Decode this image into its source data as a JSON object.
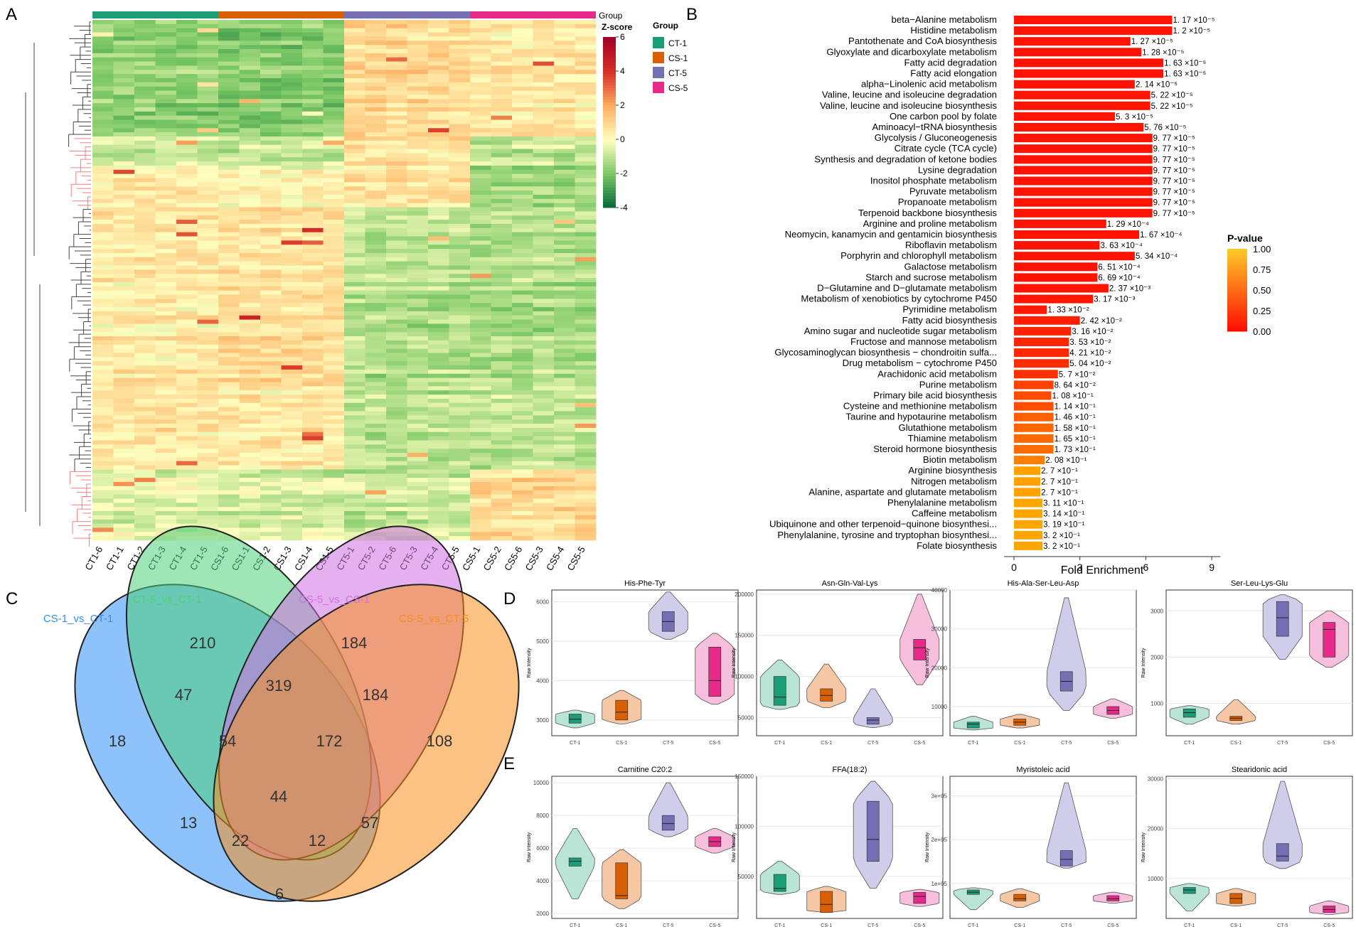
{
  "panel_labels": {
    "a": "A",
    "b": "B",
    "c": "C",
    "d": "D",
    "e": "E"
  },
  "heatmap": {
    "columns": [
      "CT1-6",
      "CT1-1",
      "CT1-2",
      "CT1-3",
      "CT1-4",
      "CT1-5",
      "CS1-6",
      "CS1-1",
      "CS1-2",
      "CS1-3",
      "CS1-4",
      "CS1-5",
      "CT5-1",
      "CT5-2",
      "CT5-6",
      "CT5-3",
      "CT5-4",
      "CT5-5",
      "CS5-1",
      "CS5-2",
      "CS5-6",
      "CS5-3",
      "CS5-4",
      "CS5-5"
    ],
    "group_bar_label": "Group",
    "scale_title": "Z-score",
    "scale_ticks": [
      "6",
      "4",
      "2",
      "0",
      "-2",
      "-4"
    ],
    "legend_title": "Group",
    "groups": [
      {
        "name": "CT-1",
        "color": "#1b9e77"
      },
      {
        "name": "CS-1",
        "color": "#d95f02"
      },
      {
        "name": "CT-5",
        "color": "#7570b3"
      },
      {
        "name": "CS-5",
        "color": "#e7298a"
      }
    ]
  },
  "chart_data": [
    {
      "type": "bar",
      "orientation": "horizontal",
      "panel": "B",
      "xlabel": "Fold Enrichment",
      "xticks": [
        "0",
        "3",
        "6",
        "9"
      ],
      "xlim": [
        0,
        9
      ],
      "legend_title": "P-value",
      "legend_ticks": [
        "1.00",
        "0.75",
        "0.50",
        "0.25",
        "0.00"
      ],
      "categories": [
        "beta−Alanine metabolism",
        "Histidine metabolism",
        "Pantothenate and CoA biosynthesis",
        "Glyoxylate and dicarboxylate metabolism",
        "Fatty acid degradation",
        "Fatty acid elongation",
        "alpha−Linolenic acid metabolism",
        "Valine, leucine and isoleucine degradation",
        "Valine, leucine and isoleucine biosynthesis",
        "One carbon pool by folate",
        "Aminoacyl−tRNA biosynthesis",
        "Glycolysis / Gluconeogenesis",
        "Citrate cycle (TCA cycle)",
        "Synthesis and degradation of ketone bodies",
        "Lysine degradation",
        "Inositol phosphate metabolism",
        "Pyruvate metabolism",
        "Propanoate metabolism",
        "Terpenoid backbone biosynthesis",
        "Arginine and proline metabolism",
        "Neomycin, kanamycin and gentamicin biosynthesis",
        "Riboflavin metabolism",
        "Porphyrin and chlorophyll metabolism",
        "Galactose metabolism",
        "Starch and sucrose metabolism",
        "D−Glutamine and D−glutamate metabolism",
        "Metabolism of xenobiotics by cytochrome P450",
        "Pyrimidine metabolism",
        "Fatty acid biosynthesis",
        "Amino sugar and nucleotide sugar metabolism",
        "Fructose and mannose metabolism",
        "Glycosaminoglycan biosynthesis − chondroitin sulfa...",
        "Drug metabolism − cytochrome P450",
        "Arachidonic acid metabolism",
        "Purine metabolism",
        "Primary bile acid biosynthesis",
        "Cysteine and methionine metabolism",
        "Taurine and hypotaurine metabolism",
        "Glutathione metabolism",
        "Thiamine metabolism",
        "Steroid hormone biosynthesis",
        "Biotin metabolism",
        "Arginine biosynthesis",
        "Nitrogen metabolism",
        "Alanine, aspartate and glutamate metabolism",
        "Phenylalanine metabolism",
        "Caffeine metabolism",
        "Ubiquinone and other terpenoid−quinone biosynthesi...",
        "Phenylalanine, tyrosine and tryptophan biosynthesi...",
        "Folate biosynthesis"
      ],
      "values": [
        7.2,
        7.2,
        5.3,
        5.8,
        6.8,
        6.8,
        5.5,
        6.2,
        6.2,
        4.6,
        5.9,
        6.3,
        6.3,
        6.3,
        6.3,
        6.3,
        6.3,
        6.3,
        6.3,
        4.2,
        5.7,
        3.9,
        5.5,
        3.8,
        3.8,
        4.3,
        3.6,
        1.5,
        3.0,
        2.6,
        2.5,
        2.5,
        2.5,
        2.0,
        1.8,
        1.7,
        1.8,
        1.8,
        1.8,
        1.8,
        1.8,
        1.4,
        1.2,
        1.2,
        1.2,
        1.3,
        1.3,
        1.3,
        1.3,
        1.3
      ],
      "pvalue_labels": [
        "1. 17 ×10⁻⁵",
        "1. 2 ×10⁻⁵",
        "1. 27 ×10⁻⁵",
        "1. 28 ×10⁻⁵",
        "1. 63 ×10⁻⁵",
        "1. 63 ×10⁻⁵",
        "2. 14 ×10⁻⁵",
        "5. 22 ×10⁻⁵",
        "5. 22 ×10⁻⁵",
        "5. 3 ×10⁻⁵",
        "5. 76 ×10⁻⁵",
        "9. 77 ×10⁻⁵",
        "9. 77 ×10⁻⁵",
        "9. 77 ×10⁻⁵",
        "9. 77 ×10⁻⁵",
        "9. 77 ×10⁻⁵",
        "9. 77 ×10⁻⁵",
        "9. 77 ×10⁻⁵",
        "9. 77 ×10⁻⁵",
        "1. 29 ×10⁻⁴",
        "1. 67 ×10⁻⁴",
        "3. 63 ×10⁻⁴",
        "5. 34 ×10⁻⁴",
        "6. 51 ×10⁻⁴",
        "6. 69 ×10⁻⁴",
        "2. 37 ×10⁻³",
        "3. 17 ×10⁻³",
        "1. 33 ×10⁻²",
        "2. 42 ×10⁻²",
        "3. 16 ×10⁻²",
        "3. 53 ×10⁻²",
        "4. 21 ×10⁻²",
        "5. 04 ×10⁻²",
        "5. 7 ×10⁻²",
        "8. 64 ×10⁻²",
        "1. 08 ×10⁻¹",
        "1. 14 ×10⁻¹",
        "1. 46 ×10⁻¹",
        "1. 58 ×10⁻¹",
        "1. 65 ×10⁻¹",
        "1. 73 ×10⁻¹",
        "2. 08 ×10⁻¹",
        "2. 7 ×10⁻¹",
        "2. 7 ×10⁻¹",
        "2. 7 ×10⁻¹",
        "3. 11 ×10⁻¹",
        "3. 14 ×10⁻¹",
        "3. 19 ×10⁻¹",
        "3. 2 ×10⁻¹",
        "3. 2 ×10⁻¹"
      ],
      "pvalues": [
        1.17e-05,
        1.2e-05,
        1.27e-05,
        1.28e-05,
        1.63e-05,
        1.63e-05,
        2.14e-05,
        5.22e-05,
        5.22e-05,
        5.3e-05,
        5.76e-05,
        9.77e-05,
        9.77e-05,
        9.77e-05,
        9.77e-05,
        9.77e-05,
        9.77e-05,
        9.77e-05,
        9.77e-05,
        0.000129,
        0.000167,
        0.000363,
        0.000534,
        0.000651,
        0.000669,
        0.00237,
        0.00317,
        0.0133,
        0.0242,
        0.0316,
        0.0353,
        0.0421,
        0.0504,
        0.057,
        0.0864,
        0.108,
        0.114,
        0.146,
        0.158,
        0.165,
        0.173,
        0.208,
        0.27,
        0.27,
        0.27,
        0.311,
        0.314,
        0.319,
        0.32,
        0.32
      ]
    },
    {
      "type": "venn",
      "panel": "C",
      "sets": [
        {
          "name": "CS-1_vs_CT-1",
          "color": "#2f8ff5"
        },
        {
          "name": "CT-5_vs_CT-1",
          "color": "#4fcf7c"
        },
        {
          "name": "CS-5_vs_CS-1",
          "color": "#d070e2"
        },
        {
          "name": "CS-5_vs_CT-5",
          "color": "#f7901e"
        }
      ],
      "regions": [
        {
          "sets": "A",
          "value": "18"
        },
        {
          "sets": "B",
          "value": "210"
        },
        {
          "sets": "C",
          "value": "184"
        },
        {
          "sets": "D",
          "value": "108"
        },
        {
          "sets": "AB",
          "value": "47"
        },
        {
          "sets": "BC",
          "value": "319"
        },
        {
          "sets": "CD",
          "value": "184"
        },
        {
          "sets": "ABC",
          "value": "54"
        },
        {
          "sets": "BCD",
          "value": "172"
        },
        {
          "sets": "ABCD",
          "value": "44"
        },
        {
          "sets": "AC",
          "value": "13"
        },
        {
          "sets": "BD",
          "value": "57"
        },
        {
          "sets": "ACD",
          "value": "22"
        },
        {
          "sets": "ABD",
          "value": "12"
        },
        {
          "sets": "AD",
          "value": "6"
        }
      ]
    },
    {
      "type": "violin-box",
      "panel": "D",
      "groups": [
        "CT-1",
        "CS-1",
        "CT-5",
        "CS-5"
      ],
      "ylabel": "Raw Intensity",
      "plots": [
        {
          "title": "His-Phe-Tyr",
          "yticks": [
            3000,
            4000,
            5000,
            6000
          ],
          "ylim": [
            2600,
            6300
          ],
          "stats": [
            {
              "min": 2800,
              "q1": 2920,
              "med": 3020,
              "q3": 3150,
              "max": 3250
            },
            {
              "min": 2900,
              "q1": 3000,
              "med": 3200,
              "q3": 3500,
              "max": 3750
            },
            {
              "min": 5050,
              "q1": 5250,
              "med": 5500,
              "q3": 5750,
              "max": 6250
            },
            {
              "min": 3400,
              "q1": 3600,
              "med": 4000,
              "q3": 4850,
              "max": 5200
            }
          ]
        },
        {
          "title": "Asn-Gln-Val-Lys",
          "yticks": [
            50000,
            100000,
            150000,
            200000
          ],
          "ylim": [
            28000,
            205000
          ],
          "stats": [
            {
              "min": 60000,
              "q1": 65000,
              "med": 75000,
              "q3": 100000,
              "max": 120000
            },
            {
              "min": 62000,
              "q1": 70000,
              "med": 77000,
              "q3": 85000,
              "max": 115000
            },
            {
              "min": 38000,
              "q1": 42000,
              "med": 47000,
              "q3": 50000,
              "max": 85000
            },
            {
              "min": 90000,
              "q1": 120000,
              "med": 135000,
              "q3": 145000,
              "max": 200000
            }
          ]
        },
        {
          "title": "His-Ala-Ser-Leu-Asp",
          "yticks": [
            10000,
            20000,
            30000,
            40000
          ],
          "ylim": [
            2500,
            40000
          ],
          "stats": [
            {
              "min": 4000,
              "q1": 4500,
              "med": 5500,
              "q3": 6000,
              "max": 7500
            },
            {
              "min": 4500,
              "q1": 5200,
              "med": 6000,
              "q3": 6800,
              "max": 8000
            },
            {
              "min": 9000,
              "q1": 14000,
              "med": 16500,
              "q3": 19000,
              "max": 38000
            },
            {
              "min": 7000,
              "q1": 8000,
              "med": 9000,
              "q3": 10000,
              "max": 12000
            }
          ]
        },
        {
          "title": "Ser-Leu-Lys-Glu",
          "yticks": [
            1000,
            2000,
            3000
          ],
          "ylim": [
            300,
            3450
          ],
          "stats": [
            {
              "min": 550,
              "q1": 700,
              "med": 800,
              "q3": 880,
              "max": 950
            },
            {
              "min": 550,
              "q1": 630,
              "med": 680,
              "q3": 720,
              "max": 1080
            },
            {
              "min": 1950,
              "q1": 2450,
              "med": 2850,
              "q3": 3200,
              "max": 3350
            },
            {
              "min": 1780,
              "q1": 2000,
              "med": 2600,
              "q3": 2750,
              "max": 3000
            }
          ]
        }
      ]
    },
    {
      "type": "violin-box",
      "panel": "E",
      "groups": [
        "CT-1",
        "CS-1",
        "CT-5",
        "CS-5"
      ],
      "ylabel": "Raw Intensity",
      "plots": [
        {
          "title": "Carnitine C20:2",
          "yticks": [
            2000,
            4000,
            6000,
            8000,
            10000
          ],
          "ylim": [
            1700,
            10400
          ],
          "stats": [
            {
              "min": 2900,
              "q1": 4900,
              "med": 5200,
              "q3": 5400,
              "max": 7200
            },
            {
              "min": 2300,
              "q1": 2900,
              "med": 3100,
              "q3": 5100,
              "max": 5900
            },
            {
              "min": 6700,
              "q1": 7100,
              "med": 7500,
              "q3": 8000,
              "max": 10000
            },
            {
              "min": 5700,
              "q1": 6100,
              "med": 6400,
              "q3": 6700,
              "max": 7200
            }
          ]
        },
        {
          "title": "FFA(18:2)",
          "yticks": [
            50000,
            100000,
            150000
          ],
          "ylim": [
            8000,
            150000
          ],
          "stats": [
            {
              "min": 32000,
              "q1": 35000,
              "med": 38000,
              "q3": 52000,
              "max": 65000
            },
            {
              "min": 14000,
              "q1": 14000,
              "med": 22000,
              "q3": 35000,
              "max": 40000
            },
            {
              "min": 38000,
              "q1": 65000,
              "med": 87000,
              "q3": 125000,
              "max": 145000
            },
            {
              "min": 20000,
              "q1": 23000,
              "med": 30000,
              "q3": 34000,
              "max": 37000
            }
          ]
        },
        {
          "title": "Myristoleic acid",
          "yticks": [
            100000,
            200000,
            300000
          ],
          "ylim": [
            20000,
            345000
          ],
          "yticklabels": [
            "1e+05",
            "2e+05",
            "3e+05"
          ],
          "stats": [
            {
              "min": 40000,
              "q1": 75000,
              "med": 80000,
              "q3": 85000,
              "max": 90000
            },
            {
              "min": 45000,
              "q1": 60000,
              "med": 65000,
              "q3": 75000,
              "max": 88000
            },
            {
              "min": 135000,
              "q1": 140000,
              "med": 155000,
              "q3": 175000,
              "max": 330000
            },
            {
              "min": 55000,
              "q1": 60000,
              "med": 65000,
              "q3": 72000,
              "max": 80000
            }
          ]
        },
        {
          "title": "Stearidonic acid",
          "yticks": [
            10000,
            20000,
            30000
          ],
          "ylim": [
            2000,
            30500
          ],
          "stats": [
            {
              "min": 3500,
              "q1": 7000,
              "med": 7700,
              "q3": 8200,
              "max": 9000
            },
            {
              "min": 4500,
              "q1": 5000,
              "med": 6000,
              "q3": 7000,
              "max": 8000
            },
            {
              "min": 12000,
              "q1": 13500,
              "med": 14500,
              "q3": 17000,
              "max": 29500
            },
            {
              "min": 2800,
              "q1": 3200,
              "med": 3800,
              "q3": 4500,
              "max": 5500
            }
          ]
        }
      ]
    }
  ]
}
